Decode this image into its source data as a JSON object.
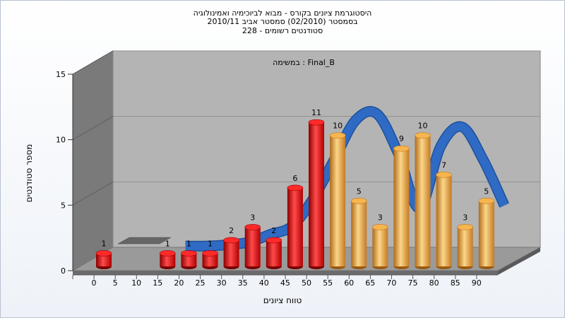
{
  "title_lines": [
    "היסטוגרמת ציונים בקורס - מבוא לביוכימיה ואמינולוגיה",
    "בסמסטר  (02/2010)  סמסטר אביב 2010/11",
    "סטודנטים רשומים - 228"
  ],
  "chart_data": {
    "type": "bar",
    "title": "היסטוגרמת ציונים בקורס - מבוא לביוכימיה ואמינולוגיה",
    "annotation": "במשימה : Final_B",
    "xlabel": "טווח ציונים",
    "ylabel": "מספר סטודנטים",
    "ylim": [
      0,
      15
    ],
    "yticks": [
      0,
      5,
      10,
      15
    ],
    "x_ticks": [
      0,
      5,
      10,
      15,
      20,
      25,
      30,
      35,
      40,
      45,
      50,
      55,
      60,
      65,
      70,
      75,
      80,
      85,
      90
    ],
    "bars": [
      {
        "x": 0,
        "value": 1,
        "color": "red"
      },
      {
        "x": 15,
        "value": 1,
        "color": "red"
      },
      {
        "x": 20,
        "value": 1,
        "color": "red"
      },
      {
        "x": 25,
        "value": 1,
        "color": "red"
      },
      {
        "x": 30,
        "value": 2,
        "color": "red"
      },
      {
        "x": 35,
        "value": 3,
        "color": "red"
      },
      {
        "x": 40,
        "value": 2,
        "color": "red"
      },
      {
        "x": 45,
        "value": 6,
        "color": "red"
      },
      {
        "x": 50,
        "value": 11,
        "color": "red"
      },
      {
        "x": 55,
        "value": 10,
        "color": "orange"
      },
      {
        "x": 60,
        "value": 5,
        "color": "orange"
      },
      {
        "x": 65,
        "value": 3,
        "color": "orange"
      },
      {
        "x": 70,
        "value": 9,
        "color": "orange"
      },
      {
        "x": 75,
        "value": 10,
        "color": "orange"
      },
      {
        "x": 80,
        "value": 7,
        "color": "orange"
      },
      {
        "x": 85,
        "value": 3,
        "color": "orange"
      },
      {
        "x": 90,
        "value": 5,
        "color": "orange"
      }
    ],
    "trend_line": {
      "x": [
        15,
        20,
        25,
        30,
        35,
        40,
        45,
        50,
        55,
        60,
        65,
        70,
        75,
        80,
        85,
        90
      ],
      "y": [
        0.9,
        0.9,
        1.0,
        1.2,
        1.8,
        2.4,
        4.5,
        7.5,
        10.5,
        11.0,
        8.0,
        3.8,
        8.5,
        10.0,
        7.5,
        4.0
      ]
    },
    "grid": true,
    "colors": {
      "red": "#e01515",
      "orange": "#f0a83c",
      "trend": "#2f6bc4",
      "wall": "#b4b4b4",
      "side_wall": "#7a7a7a"
    }
  }
}
